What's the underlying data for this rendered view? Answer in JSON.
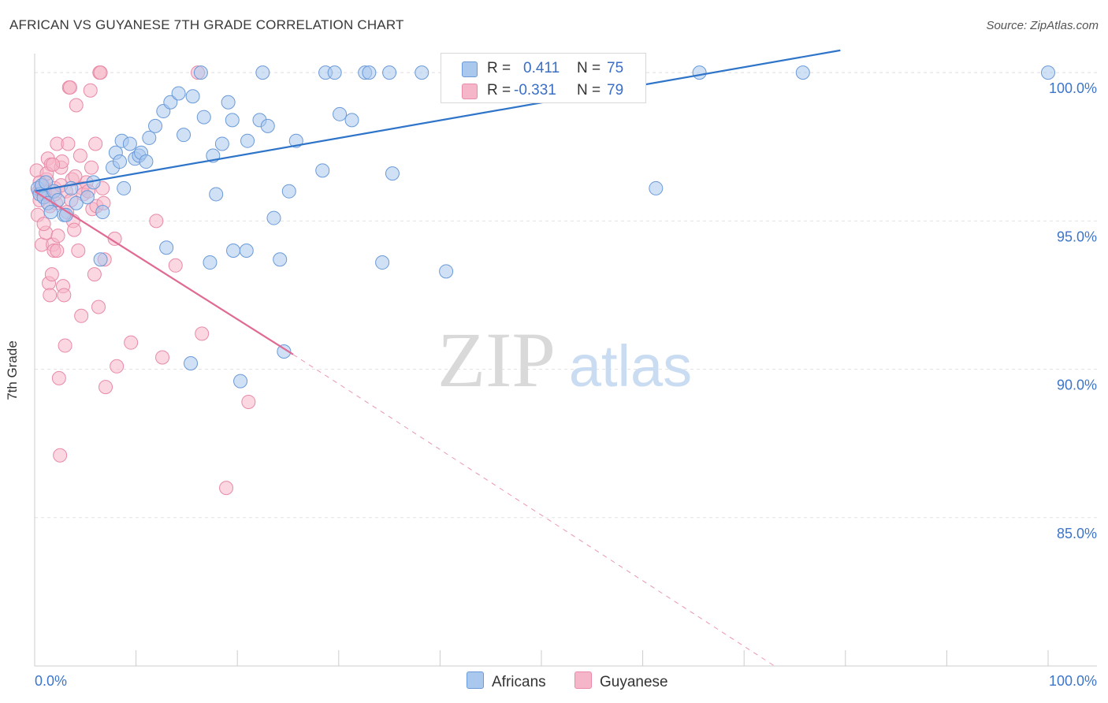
{
  "title": "AFRICAN VS GUYANESE 7TH GRADE CORRELATION CHART",
  "source": "Source: ZipAtlas.com",
  "watermark": {
    "zip": "ZIP",
    "atlas": "atlas"
  },
  "colors": {
    "blue_fill": "#aac8ee",
    "blue_stroke": "#6a9ad8",
    "blue_line": "#2e74c9",
    "pink_fill": "#f6b6c9",
    "pink_stroke": "#e88aa8",
    "pink_line": "#e06a94",
    "tick_text": "#3d75c8",
    "grid": "#e3e3e3"
  },
  "legend": {
    "rows": [
      {
        "r_label": "R =",
        "r_value": "0.411",
        "n_label": "N =",
        "n_value": "75"
      },
      {
        "r_label": "R =",
        "r_value": "-0.331",
        "n_label": "N =",
        "n_value": "79"
      }
    ]
  },
  "bottom_legend": {
    "africans": "Africans",
    "guyanese": "Guyanese"
  },
  "chart_data": {
    "type": "scatter",
    "title": "AFRICAN VS GUYANESE 7TH GRADE CORRELATION CHART",
    "xlabel": "",
    "ylabel": "7th Grade",
    "xlim": [
      0,
      100
    ],
    "ylim": [
      80.0,
      100.8
    ],
    "x_tick_labels": [
      "0.0%",
      "100.0%"
    ],
    "y_ticks": [
      85,
      90,
      95,
      100
    ],
    "y_tick_labels": [
      "85.0%",
      "90.0%",
      "95.0%",
      "100.0%"
    ],
    "grid": true,
    "legend_position": "top-center",
    "series": [
      {
        "name": "Africans",
        "r": 0.411,
        "n": 75,
        "trend": {
          "x": [
            0,
            79.5
          ],
          "y": [
            96.0,
            100.75
          ],
          "dashed_to": null
        },
        "points": [
          [
            0.3,
            96.1
          ],
          [
            0.5,
            95.9
          ],
          [
            0.7,
            96.2
          ],
          [
            0.9,
            95.8
          ],
          [
            1.1,
            96.3
          ],
          [
            1.3,
            95.6
          ],
          [
            1.6,
            95.3
          ],
          [
            1.9,
            96.0
          ],
          [
            2.3,
            95.7
          ],
          [
            2.9,
            95.2
          ],
          [
            3.6,
            96.1
          ],
          [
            4.1,
            95.6
          ],
          [
            5.2,
            95.8
          ],
          [
            5.8,
            96.3
          ],
          [
            6.7,
            95.3
          ],
          [
            6.5,
            93.7
          ],
          [
            7.7,
            96.8
          ],
          [
            8.0,
            97.3
          ],
          [
            8.4,
            97.0
          ],
          [
            8.6,
            97.7
          ],
          [
            8.8,
            96.1
          ],
          [
            9.4,
            97.6
          ],
          [
            9.9,
            97.1
          ],
          [
            10.3,
            97.2
          ],
          [
            10.5,
            97.3
          ],
          [
            11.0,
            97.0
          ],
          [
            11.3,
            97.8
          ],
          [
            11.9,
            98.2
          ],
          [
            12.7,
            98.7
          ],
          [
            13.4,
            99.0
          ],
          [
            14.2,
            99.3
          ],
          [
            14.7,
            97.9
          ],
          [
            15.6,
            99.2
          ],
          [
            16.4,
            100.0
          ],
          [
            16.7,
            98.5
          ],
          [
            17.6,
            97.2
          ],
          [
            17.9,
            95.9
          ],
          [
            18.5,
            97.6
          ],
          [
            19.1,
            99.0
          ],
          [
            19.5,
            98.4
          ],
          [
            21.0,
            97.7
          ],
          [
            22.2,
            98.4
          ],
          [
            22.5,
            100.0
          ],
          [
            23.0,
            98.2
          ],
          [
            23.6,
            95.1
          ],
          [
            24.2,
            93.7
          ],
          [
            25.1,
            96.0
          ],
          [
            25.8,
            97.7
          ],
          [
            28.4,
            96.7
          ],
          [
            28.7,
            100.0
          ],
          [
            29.6,
            100.0
          ],
          [
            30.1,
            98.6
          ],
          [
            31.3,
            98.4
          ],
          [
            32.6,
            100.0
          ],
          [
            33.0,
            100.0
          ],
          [
            34.3,
            93.6
          ],
          [
            35.0,
            100.0
          ],
          [
            35.3,
            96.6
          ],
          [
            38.2,
            100.0
          ],
          [
            40.6,
            93.3
          ],
          [
            43.1,
            100.0
          ],
          [
            47.3,
            100.0
          ],
          [
            56.3,
            100.0
          ],
          [
            61.3,
            96.1
          ],
          [
            65.6,
            100.0
          ],
          [
            75.8,
            100.0
          ],
          [
            100.0,
            100.0
          ],
          [
            13.0,
            94.1
          ],
          [
            17.3,
            93.6
          ],
          [
            19.6,
            94.0
          ],
          [
            20.9,
            94.0
          ],
          [
            24.6,
            90.6
          ],
          [
            15.4,
            90.2
          ],
          [
            20.3,
            89.6
          ],
          [
            3.1,
            95.2
          ]
        ]
      },
      {
        "name": "Guyanese",
        "r": -0.331,
        "n": 79,
        "trend": {
          "x": [
            0,
            25.5
          ],
          "y": [
            96.0,
            90.5
          ],
          "dashed_to": {
            "x": 73,
            "y": 80.0
          }
        },
        "points": [
          [
            0.2,
            96.7
          ],
          [
            0.3,
            95.2
          ],
          [
            0.4,
            96.0
          ],
          [
            0.5,
            95.7
          ],
          [
            0.6,
            96.1
          ],
          [
            0.7,
            94.2
          ],
          [
            0.8,
            96.2
          ],
          [
            0.9,
            95.8
          ],
          [
            1.0,
            95.9
          ],
          [
            1.1,
            94.6
          ],
          [
            1.2,
            96.4
          ],
          [
            1.3,
            97.1
          ],
          [
            1.4,
            92.9
          ],
          [
            1.5,
            92.5
          ],
          [
            1.6,
            96.9
          ],
          [
            1.7,
            93.2
          ],
          [
            1.8,
            94.2
          ],
          [
            1.9,
            94.0
          ],
          [
            2.0,
            96.1
          ],
          [
            2.1,
            95.6
          ],
          [
            2.2,
            97.6
          ],
          [
            2.3,
            94.5
          ],
          [
            2.4,
            89.7
          ],
          [
            2.5,
            87.1
          ],
          [
            2.6,
            96.8
          ],
          [
            2.7,
            97.0
          ],
          [
            2.8,
            92.8
          ],
          [
            2.9,
            92.5
          ],
          [
            3.0,
            90.8
          ],
          [
            3.1,
            96.0
          ],
          [
            3.3,
            97.6
          ],
          [
            3.4,
            99.5
          ],
          [
            3.5,
            99.5
          ],
          [
            3.6,
            95.7
          ],
          [
            3.7,
            96.4
          ],
          [
            3.8,
            95.0
          ],
          [
            3.9,
            94.7
          ],
          [
            4.1,
            98.9
          ],
          [
            4.3,
            94.0
          ],
          [
            4.5,
            97.2
          ],
          [
            4.6,
            91.8
          ],
          [
            4.7,
            96.1
          ],
          [
            4.8,
            95.9
          ],
          [
            5.1,
            96.3
          ],
          [
            5.3,
            96.0
          ],
          [
            5.5,
            99.4
          ],
          [
            5.7,
            95.4
          ],
          [
            5.9,
            93.2
          ],
          [
            6.0,
            97.6
          ],
          [
            6.1,
            95.5
          ],
          [
            6.3,
            92.1
          ],
          [
            6.4,
            100.0
          ],
          [
            6.5,
            100.0
          ],
          [
            6.7,
            96.1
          ],
          [
            6.8,
            95.6
          ],
          [
            6.9,
            93.7
          ],
          [
            7.0,
            89.4
          ],
          [
            7.9,
            94.4
          ],
          [
            8.1,
            90.1
          ],
          [
            9.5,
            90.9
          ],
          [
            12.0,
            95.0
          ],
          [
            12.6,
            90.4
          ],
          [
            13.9,
            93.5
          ],
          [
            16.1,
            100.0
          ],
          [
            16.5,
            91.2
          ],
          [
            18.9,
            86.0
          ],
          [
            21.1,
            88.9
          ],
          [
            1.0,
            96.0
          ],
          [
            1.5,
            95.5
          ],
          [
            2.0,
            95.9
          ],
          [
            0.9,
            94.9
          ],
          [
            1.2,
            96.6
          ],
          [
            2.6,
            96.2
          ],
          [
            3.2,
            95.3
          ],
          [
            4.0,
            96.5
          ],
          [
            5.6,
            96.8
          ],
          [
            0.5,
            96.3
          ],
          [
            1.8,
            96.9
          ],
          [
            2.2,
            94.0
          ]
        ]
      }
    ]
  }
}
